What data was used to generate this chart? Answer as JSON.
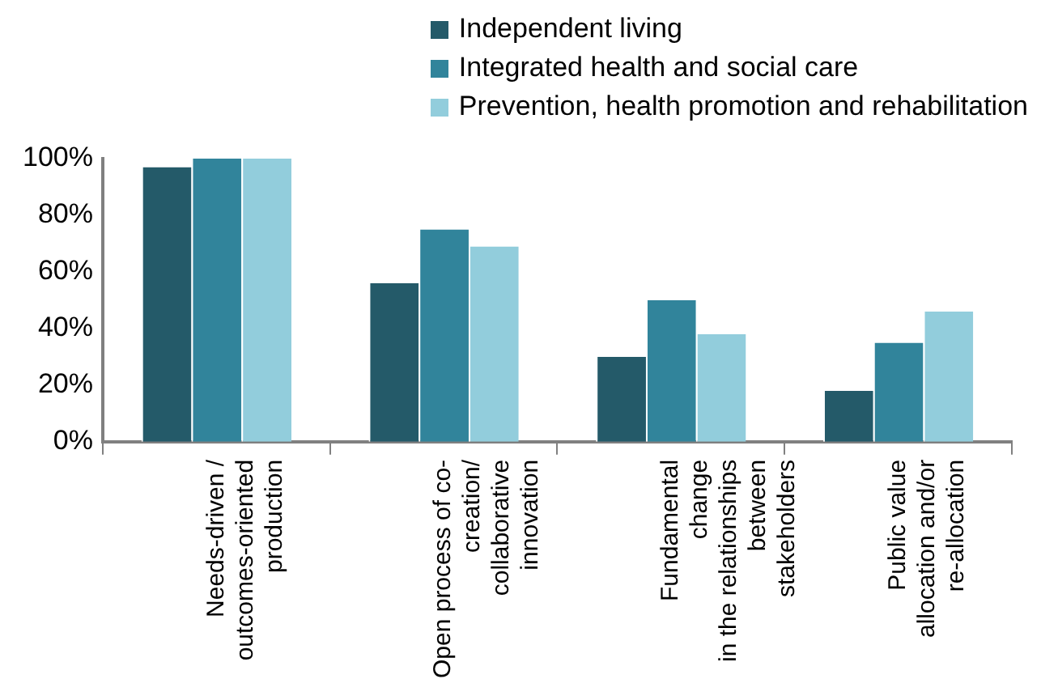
{
  "chart_data": {
    "type": "bar",
    "categories": [
      "Needs-driven /\noutcomes-oriented\nproduction",
      "Open process of co-\ncreation/\ncollaborative\ninnovation",
      "Fundamental\nchange\nin the relationships\nbetween\nstakeholders",
      "Public value\nallocation and/or\nre-allocation"
    ],
    "series": [
      {
        "name": "Independent living",
        "color": "#245a69",
        "values": [
          97,
          56,
          30,
          18
        ]
      },
      {
        "name": "Integrated health and social care",
        "color": "#31849b",
        "values": [
          100,
          75,
          50,
          35
        ]
      },
      {
        "name": "Prevention, health promotion and rehabilitation",
        "color": "#92cddc",
        "values": [
          100,
          69,
          38,
          46
        ]
      }
    ],
    "ylim": [
      0,
      100
    ],
    "yticks": [
      {
        "value": 0,
        "label": "0%"
      },
      {
        "value": 20,
        "label": "20%"
      },
      {
        "value": 40,
        "label": "40%"
      },
      {
        "value": 60,
        "label": "60%"
      },
      {
        "value": 80,
        "label": "80%"
      },
      {
        "value": 100,
        "label": "100%"
      }
    ],
    "grid": false,
    "legend": "top right"
  }
}
